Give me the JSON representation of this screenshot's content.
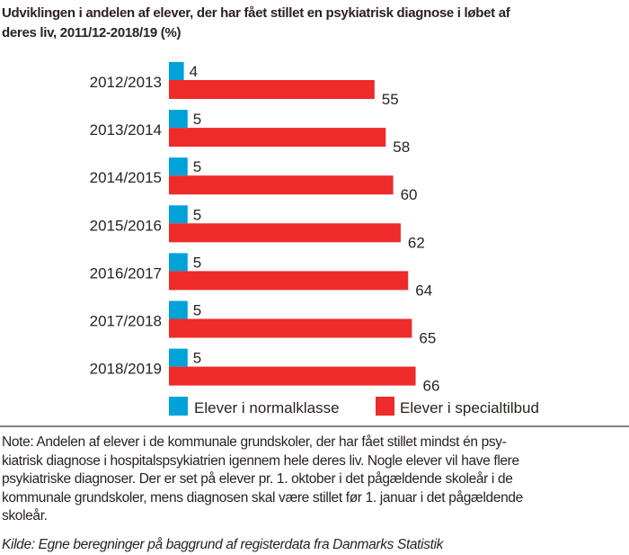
{
  "chart_data": {
    "type": "bar",
    "orientation": "horizontal",
    "title": "Udviklingen i andelen af elever, der har fået stillet en psykiatrisk diagnose i løbet af deres liv, 2011/12-2018/19  (%)",
    "title_lines": [
      "Udviklingen i andelen af elever, der har fået stillet en psykiatrisk diagnose i løbet af",
      "deres liv, 2011/12-2018/19  (%)"
    ],
    "categories": [
      "2012/2013",
      "2013/2014",
      "2014/2015",
      "2015/2016",
      "2016/2017",
      "2017/2018",
      "2018/2019"
    ],
    "series": [
      {
        "name": "Elever i normalklasse",
        "color": "#00a3d9",
        "values": [
          4,
          5,
          5,
          5,
          5,
          5,
          5
        ]
      },
      {
        "name": "Elever i specialtilbud",
        "color": "#ee2a2a",
        "values": [
          55,
          58,
          60,
          62,
          64,
          65,
          66
        ]
      }
    ],
    "data_labels": true,
    "grid": false,
    "legend": "bottom"
  },
  "note_lines": [
    "Note: Andelen af elever i de kommunale grundskoler, der har fået stillet mindst én psy-",
    "kiatrisk diagnose i hospitalspsykiatrien igennem hele deres liv. Nogle elever vil have flere",
    "psykiatriske diagnoser. Der er set på elever pr. 1. oktober i det pågældende skoleår i de",
    "kommunale grundskoler, mens diagnosen skal være stillet før 1. januar i det pågældende",
    "skoleår."
  ],
  "source": "Kilde: Egne beregninger på baggrund af registerdata fra Danmarks Statistik"
}
